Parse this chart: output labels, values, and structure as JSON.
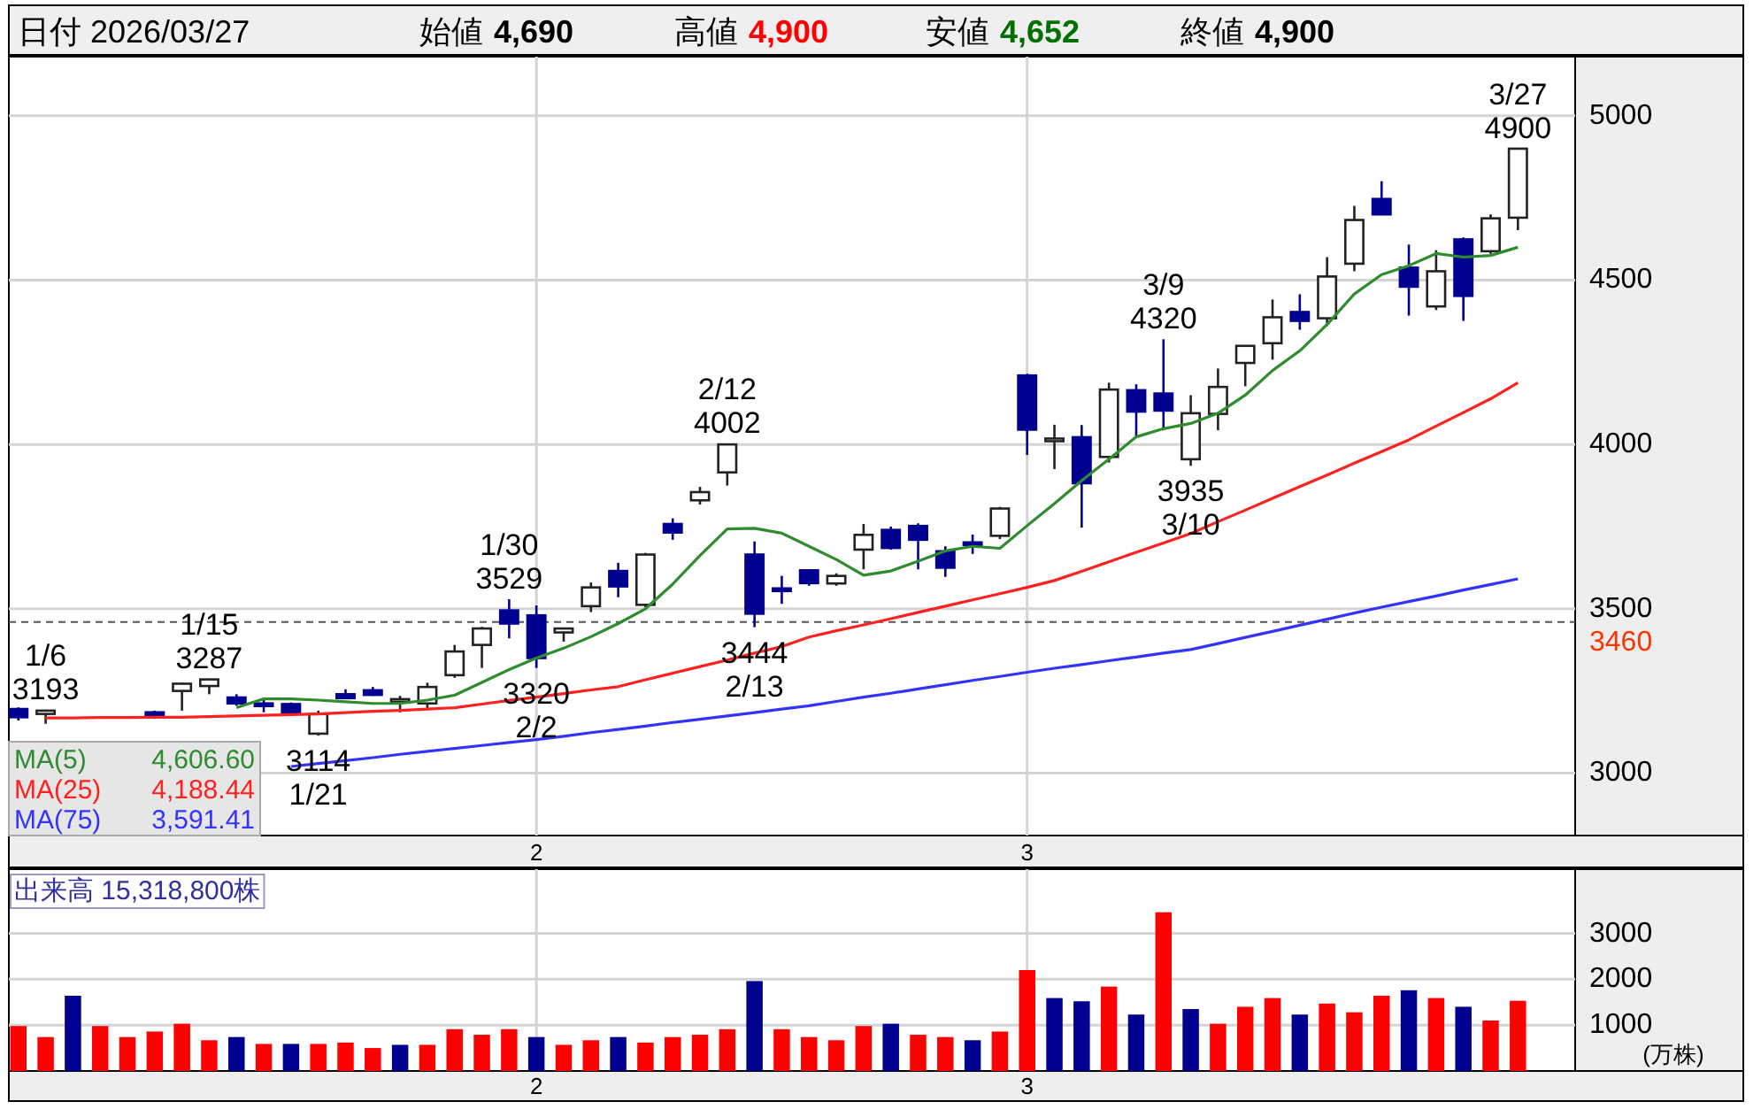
{
  "chart_data": [
    {
      "type": "candlestick",
      "categories": [
        null,
        null,
        null,
        null,
        null,
        null,
        null,
        null,
        null,
        null,
        null,
        null,
        null,
        null,
        null,
        null,
        null,
        null,
        null,
        "2",
        null,
        null,
        null,
        null,
        null,
        null,
        null,
        null,
        null,
        null,
        null,
        null,
        null,
        null,
        null,
        null,
        null,
        "3",
        null,
        null,
        null,
        null,
        null,
        null,
        null,
        null,
        null,
        null,
        null,
        null,
        null,
        null,
        null,
        null,
        null,
        null
      ],
      "ohlc": [
        [
          3195,
          3200,
          3160,
          3170
        ],
        [
          3180,
          3193,
          3150,
          3190
        ],
        null,
        null,
        null,
        [
          3185,
          3190,
          3165,
          3175
        ],
        [
          3250,
          3275,
          3190,
          3272
        ],
        [
          3265,
          3287,
          3240,
          3285
        ],
        [
          3230,
          3240,
          3205,
          3212
        ],
        [
          3212,
          3225,
          3185,
          3210
        ],
        [
          3210,
          3215,
          3175,
          3185
        ],
        [
          3120,
          3190,
          3114,
          3180
        ],
        [
          3240,
          3255,
          3225,
          3228
        ],
        [
          3252,
          3262,
          3235,
          3238
        ],
        [
          3220,
          3235,
          3185,
          3225
        ],
        [
          3212,
          3275,
          3195,
          3262
        ],
        [
          3298,
          3390,
          3290,
          3370
        ],
        [
          3390,
          3445,
          3320,
          3440
        ],
        [
          3495,
          3529,
          3410,
          3455
        ],
        [
          3480,
          3510,
          3320,
          3350
        ],
        [
          3428,
          3440,
          3400,
          3440
        ],
        [
          3508,
          3580,
          3490,
          3565
        ],
        [
          3615,
          3640,
          3535,
          3568
        ],
        [
          3512,
          3670,
          3505,
          3665
        ],
        [
          3758,
          3775,
          3710,
          3732
        ],
        [
          3830,
          3871,
          3817,
          3855
        ],
        [
          3915,
          4002,
          3875,
          4000
        ],
        [
          3665,
          3705,
          3444,
          3485
        ],
        [
          3562,
          3600,
          3515,
          3558
        ],
        [
          3617,
          3620,
          3570,
          3578
        ],
        [
          3577,
          3608,
          3570,
          3600
        ],
        [
          3680,
          3758,
          3620,
          3725
        ],
        [
          3740,
          3750,
          3680,
          3685
        ],
        [
          3752,
          3760,
          3620,
          3710
        ],
        [
          3675,
          3690,
          3597,
          3625
        ],
        [
          3702,
          3726,
          3667,
          3697
        ],
        [
          3722,
          3810,
          3712,
          3805
        ],
        [
          4210,
          4215,
          3968,
          4045
        ],
        [
          4012,
          4060,
          3925,
          4018
        ],
        [
          4022,
          4059,
          3747,
          3882
        ],
        [
          3962,
          4188,
          3945,
          4167
        ],
        [
          4165,
          4183,
          4022,
          4100
        ],
        [
          4155,
          4320,
          4043,
          4103
        ],
        [
          3955,
          4150,
          3935,
          4095
        ],
        [
          4093,
          4231,
          4043,
          4175
        ],
        [
          4248,
          4301,
          4177,
          4300
        ],
        [
          4308,
          4441,
          4258,
          4387
        ],
        [
          4403,
          4457,
          4349,
          4376
        ],
        [
          4384,
          4570,
          4360,
          4511
        ],
        [
          4550,
          4726,
          4527,
          4683
        ],
        [
          4747,
          4801,
          4699,
          4700
        ],
        [
          4538,
          4608,
          4392,
          4480
        ],
        [
          4420,
          4591,
          4409,
          4527
        ],
        [
          4624,
          4630,
          4376,
          4452
        ],
        [
          4588,
          4700,
          4580,
          4688
        ],
        [
          4690,
          4900,
          4652,
          4900
        ]
      ],
      "series": [
        {
          "name": "MA(5)",
          "type": "line",
          "color": "#2e8b2e",
          "values": [
            null,
            null,
            null,
            null,
            null,
            null,
            null,
            null,
            3199,
            3226,
            3226,
            3222,
            3217,
            3212,
            3212,
            3222,
            3237,
            3276,
            3315,
            3350,
            3380,
            3415,
            3455,
            3500,
            3575,
            3662,
            3743,
            3745,
            3730,
            3690,
            3650,
            3602,
            3615,
            3645,
            3676,
            3690,
            3684,
            3753,
            3820,
            3890,
            3955,
            4023,
            4048,
            4064,
            4095,
            4150,
            4225,
            4285,
            4365,
            4458,
            4517,
            4544,
            4581,
            4570,
            4575,
            4600
          ]
        },
        {
          "name": "MA(25)",
          "type": "line",
          "color": "#ff2020",
          "values": [
            null,
            3168,
            3168,
            3169,
            3169,
            3170,
            3170,
            3172,
            3174,
            3176,
            3178,
            3180,
            3184,
            3188,
            3191,
            3195,
            3199,
            3210,
            3221,
            3231,
            3242,
            3253,
            3263,
            3284,
            3304,
            3324,
            3344,
            3365,
            3385,
            3414,
            3433,
            3451,
            3470,
            3489,
            3508,
            3527,
            3546,
            3565,
            3586,
            3614,
            3643,
            3672,
            3700,
            3729,
            3765,
            3800,
            3836,
            3872,
            3907,
            3943,
            3978,
            4014,
            4056,
            4097,
            4139,
            4188
          ]
        },
        {
          "name": "MA(75)",
          "type": "line",
          "color": "#3333ff",
          "values": [
            null,
            null,
            null,
            null,
            null,
            null,
            null,
            null,
            null,
            null,
            3020,
            3029,
            3038,
            3047,
            3057,
            3066,
            3075,
            3084,
            3093,
            3102,
            3112,
            3123,
            3133,
            3143,
            3154,
            3164,
            3174,
            3184,
            3195,
            3205,
            3218,
            3231,
            3243,
            3256,
            3269,
            3282,
            3294,
            3307,
            3319,
            3330,
            3342,
            3353,
            3365,
            3376,
            3394,
            3413,
            3431,
            3450,
            3468,
            3487,
            3505,
            3522,
            3539,
            3557,
            3574,
            3591
          ]
        }
      ],
      "ylim": [
        2810,
        5180
      ],
      "yticks": [
        3000,
        3500,
        4000,
        4500,
        5000
      ],
      "grid": true,
      "legend": "bottom left",
      "ref_lines": [
        {
          "axis": "y",
          "value": 3460,
          "label": "3460",
          "color": "#555555",
          "line_style": "dashed"
        }
      ],
      "annotations": [
        "日付 2026/03/27",
        "始値",
        "4,690",
        "高値",
        "4,900",
        "安値",
        "4,652",
        "終値",
        "4,900",
        "4,606.60",
        "4,188.44",
        "3,591.41",
        "1/6\n3193",
        "1/15\n3287",
        "3114\n1/21",
        "1/30\n3529",
        "3320\n2/2",
        "2/12\n4002",
        "3444\n2/13",
        {
          "text": "3/9\n4320",
          "y": 4320
        },
        "3935\n3/10",
        "3/27\n4900"
      ]
    },
    {
      "type": "bar",
      "categories": [
        null,
        null,
        null,
        null,
        null,
        null,
        null,
        null,
        null,
        null,
        null,
        null,
        null,
        null,
        null,
        null,
        null,
        null,
        null,
        "2",
        null,
        null,
        null,
        null,
        null,
        null,
        null,
        null,
        null,
        null,
        null,
        null,
        null,
        null,
        null,
        null,
        null,
        "3",
        null,
        null,
        null,
        null,
        null,
        null,
        null,
        null,
        null,
        null,
        null,
        null,
        null,
        null,
        null,
        null,
        null,
        null
      ],
      "values": [
        980,
        740,
        1640,
        980,
        740,
        860,
        1030,
        670,
        740,
        590,
        590,
        590,
        620,
        500,
        570,
        570,
        910,
        790,
        910,
        740,
        570,
        670,
        740,
        620,
        740,
        790,
        910,
        1960,
        910,
        740,
        670,
        980,
        1030,
        790,
        740,
        670,
        860,
        2200,
        1590,
        1520,
        1840,
        1230,
        3460,
        1350,
        1030,
        1400,
        1590,
        1230,
        1470,
        1280,
        1640,
        1760,
        1590,
        1400,
        1100,
        1530
      ],
      "colors": [
        "#ff0000",
        "#ff0000",
        "#000090",
        "#ff0000",
        "#ff0000",
        "#ff0000",
        "#ff0000",
        "#ff0000",
        "#000090",
        "#ff0000",
        "#000090",
        "#ff0000",
        "#ff0000",
        "#ff0000",
        "#000090",
        "#ff0000",
        "#ff0000",
        "#ff0000",
        "#ff0000",
        "#000090",
        "#ff0000",
        "#ff0000",
        "#000090",
        "#ff0000",
        "#ff0000",
        "#ff0000",
        "#ff0000",
        "#000090",
        "#ff0000",
        "#ff0000",
        "#ff0000",
        "#ff0000",
        "#000090",
        "#ff0000",
        "#ff0000",
        "#000090",
        "#ff0000",
        "#ff0000",
        "#000090",
        "#000090",
        "#ff0000",
        "#000090",
        "#ff0000",
        "#000090",
        "#ff0000",
        "#ff0000",
        "#ff0000",
        "#000090",
        "#ff0000",
        "#ff0000",
        "#ff0000",
        "#000090",
        "#ff0000",
        "#000090",
        "#ff0000",
        "#ff0000"
      ],
      "ylim": [
        0,
        4400
      ],
      "yticks": [
        1000,
        2000,
        3000
      ],
      "ylabel": "(万株)",
      "grid": true,
      "annotations": [
        "出来高 15,318,800株"
      ]
    }
  ]
}
